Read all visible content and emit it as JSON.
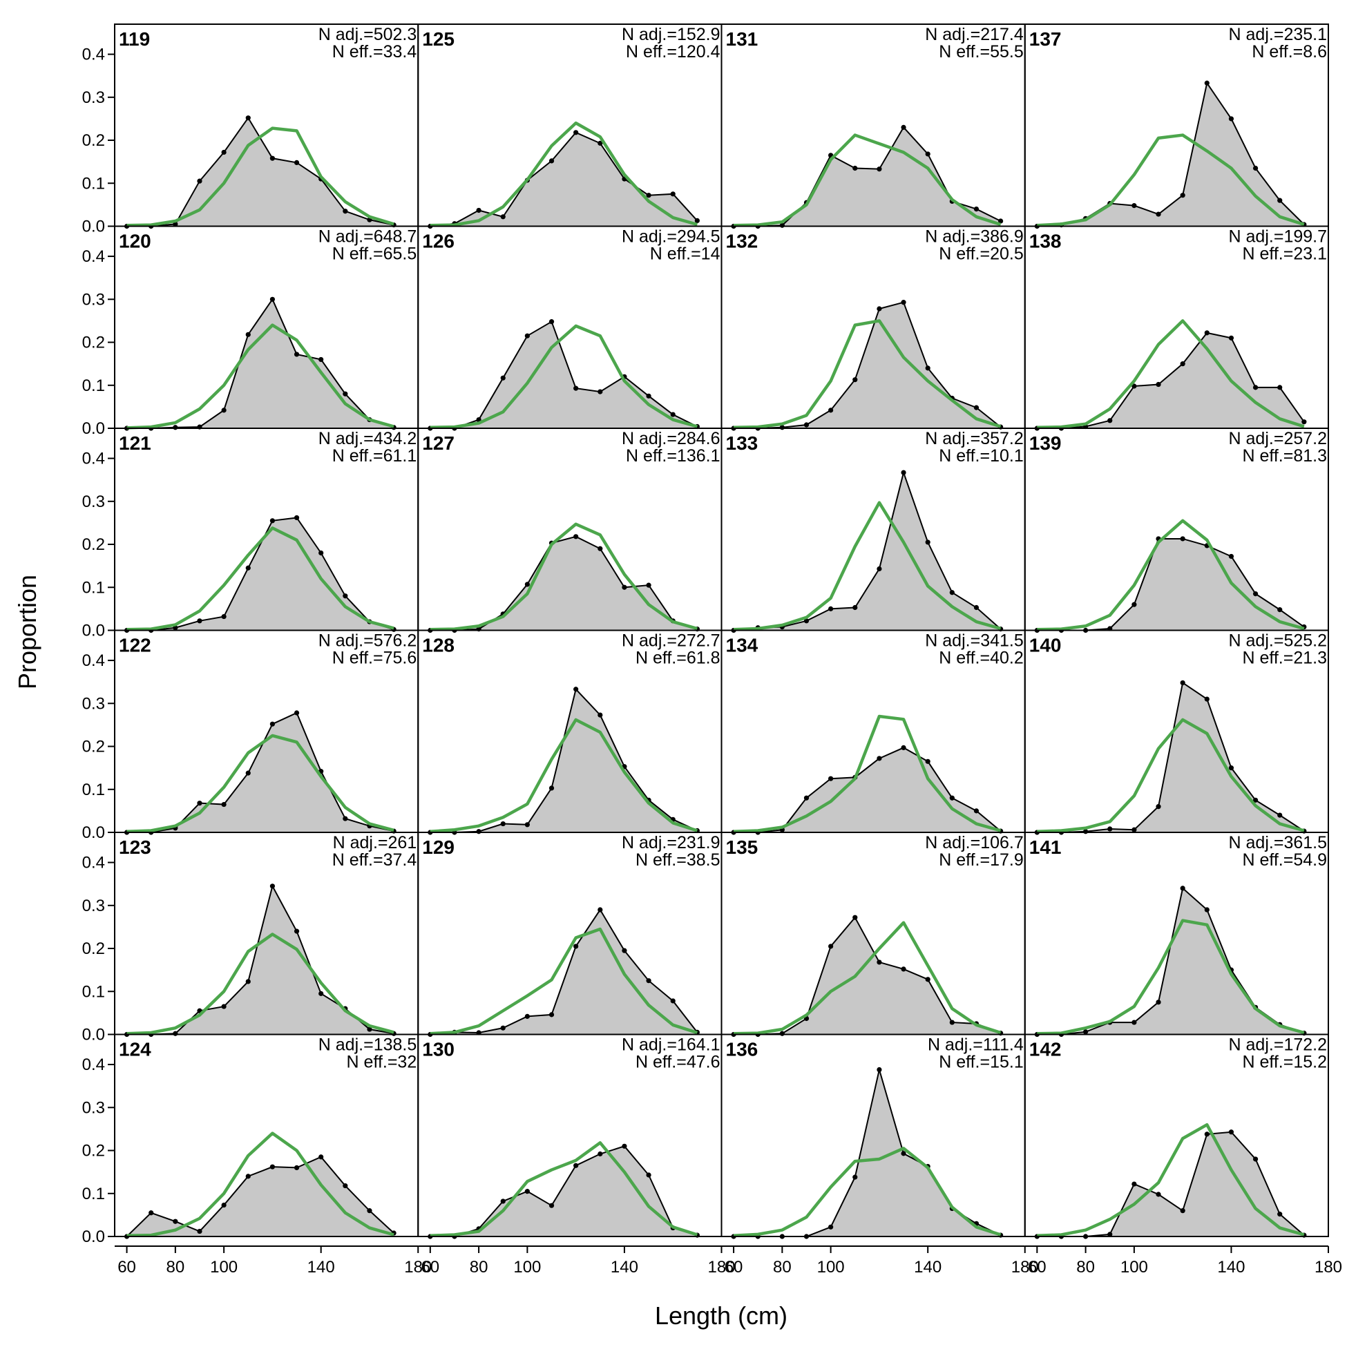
{
  "chart_data": {
    "type": "area",
    "xlabel": "Length (cm)",
    "ylabel": "Proportion",
    "xlim": [
      55,
      180
    ],
    "ylim": [
      0,
      0.47
    ],
    "x_ticks": [
      60,
      80,
      100,
      140,
      180
    ],
    "y_ticks": [
      0.0,
      0.1,
      0.2,
      0.3,
      0.4
    ],
    "x_tick_labels": [
      "60",
      "80",
      "100",
      "140",
      "180"
    ],
    "y_tick_labels": [
      "0.0",
      "0.1",
      "0.2",
      "0.3",
      "0.4"
    ],
    "x": [
      60,
      70,
      80,
      90,
      100,
      110,
      120,
      130,
      140,
      150,
      160,
      170
    ],
    "colors": {
      "observed_fill": "#c8c8c8",
      "observed_line": "#000000",
      "expected_line": "#4ca64c",
      "zero_line": "#b0b0b0"
    },
    "grid": false,
    "layout": {
      "rows": 6,
      "columns": 4,
      "order": "column-major"
    },
    "panels": [
      {
        "id": "119",
        "n_adj": "N adj.=502.3",
        "n_eff": "N eff.=33.4",
        "observed": [
          0,
          0,
          0.005,
          0.105,
          0.172,
          0.252,
          0.158,
          0.148,
          0.11,
          0.035,
          0.015,
          0.003
        ],
        "expected": [
          0.002,
          0.003,
          0.012,
          0.038,
          0.1,
          0.188,
          0.228,
          0.222,
          0.115,
          0.057,
          0.022,
          0.005
        ]
      },
      {
        "id": "120",
        "n_adj": "N adj.=648.7",
        "n_eff": "N eff.=65.5",
        "observed": [
          0,
          0,
          0.002,
          0.003,
          0.042,
          0.218,
          0.3,
          0.172,
          0.16,
          0.08,
          0.02,
          0.002
        ],
        "expected": [
          0.001,
          0.003,
          0.013,
          0.045,
          0.1,
          0.183,
          0.24,
          0.205,
          0.13,
          0.057,
          0.02,
          0.004
        ]
      },
      {
        "id": "121",
        "n_adj": "N adj.=434.2",
        "n_eff": "N eff.=61.1",
        "observed": [
          0,
          0,
          0.006,
          0.022,
          0.032,
          0.145,
          0.255,
          0.262,
          0.18,
          0.08,
          0.02,
          0.002
        ],
        "expected": [
          0.002,
          0.003,
          0.013,
          0.045,
          0.105,
          0.175,
          0.238,
          0.21,
          0.12,
          0.055,
          0.02,
          0.005
        ]
      },
      {
        "id": "122",
        "n_adj": "N adj.=576.2",
        "n_eff": "N eff.=75.6",
        "observed": [
          0,
          0,
          0.01,
          0.068,
          0.065,
          0.138,
          0.252,
          0.278,
          0.142,
          0.032,
          0.015,
          0.003
        ],
        "expected": [
          0.002,
          0.004,
          0.015,
          0.045,
          0.105,
          0.185,
          0.225,
          0.21,
          0.13,
          0.058,
          0.02,
          0.005
        ]
      },
      {
        "id": "123",
        "n_adj": "N adj.=261",
        "n_eff": "N eff.=37.4",
        "observed": [
          0,
          0,
          0.002,
          0.055,
          0.065,
          0.123,
          0.345,
          0.24,
          0.095,
          0.06,
          0.012,
          0.002
        ],
        "expected": [
          0.002,
          0.004,
          0.015,
          0.045,
          0.1,
          0.193,
          0.233,
          0.198,
          0.12,
          0.055,
          0.02,
          0.005
        ]
      },
      {
        "id": "124",
        "n_adj": "N adj.=138.5",
        "n_eff": "N eff.=32",
        "observed": [
          0,
          0.055,
          0.035,
          0.012,
          0.073,
          0.14,
          0.162,
          0.16,
          0.185,
          0.118,
          0.06,
          0.008
        ],
        "expected": [
          0.002,
          0.003,
          0.015,
          0.042,
          0.1,
          0.188,
          0.24,
          0.2,
          0.12,
          0.055,
          0.02,
          0.004
        ]
      },
      {
        "id": "125",
        "n_adj": "N adj.=152.9",
        "n_eff": "N eff.=120.4",
        "observed": [
          0,
          0.006,
          0.037,
          0.022,
          0.107,
          0.152,
          0.218,
          0.193,
          0.11,
          0.072,
          0.075,
          0.013
        ],
        "expected": [
          0.002,
          0.003,
          0.013,
          0.045,
          0.108,
          0.187,
          0.24,
          0.208,
          0.12,
          0.058,
          0.02,
          0.004
        ]
      },
      {
        "id": "126",
        "n_adj": "N adj.=294.5",
        "n_eff": "N eff.=14",
        "observed": [
          0,
          0,
          0.02,
          0.117,
          0.215,
          0.248,
          0.093,
          0.085,
          0.12,
          0.075,
          0.032,
          0.004
        ],
        "expected": [
          0.002,
          0.003,
          0.012,
          0.038,
          0.105,
          0.188,
          0.238,
          0.215,
          0.11,
          0.055,
          0.02,
          0.004
        ]
      },
      {
        "id": "127",
        "n_adj": "N adj.=284.6",
        "n_eff": "N eff.=136.1",
        "observed": [
          0,
          0,
          0.003,
          0.038,
          0.107,
          0.203,
          0.218,
          0.19,
          0.1,
          0.105,
          0.022,
          0.003
        ],
        "expected": [
          0.002,
          0.003,
          0.01,
          0.032,
          0.085,
          0.2,
          0.247,
          0.222,
          0.13,
          0.06,
          0.02,
          0.004
        ]
      },
      {
        "id": "128",
        "n_adj": "N adj.=272.7",
        "n_eff": "N eff.=61.8",
        "observed": [
          0,
          0,
          0.002,
          0.02,
          0.018,
          0.103,
          0.333,
          0.273,
          0.153,
          0.075,
          0.03,
          0.004
        ],
        "expected": [
          0.002,
          0.006,
          0.015,
          0.035,
          0.066,
          0.17,
          0.262,
          0.233,
          0.14,
          0.068,
          0.022,
          0.004
        ]
      },
      {
        "id": "129",
        "n_adj": "N adj.=231.9",
        "n_eff": "N eff.=38.5",
        "observed": [
          0,
          0.005,
          0.004,
          0.015,
          0.042,
          0.046,
          0.205,
          0.29,
          0.195,
          0.125,
          0.078,
          0.005
        ],
        "expected": [
          0.002,
          0.005,
          0.02,
          0.055,
          0.09,
          0.127,
          0.225,
          0.245,
          0.14,
          0.068,
          0.022,
          0.004
        ]
      },
      {
        "id": "130",
        "n_adj": "N adj.=164.1",
        "n_eff": "N eff.=47.6",
        "observed": [
          0,
          0,
          0.018,
          0.082,
          0.105,
          0.072,
          0.165,
          0.192,
          0.21,
          0.143,
          0.02,
          0.003
        ],
        "expected": [
          0.002,
          0.004,
          0.012,
          0.06,
          0.128,
          0.155,
          0.177,
          0.218,
          0.15,
          0.07,
          0.022,
          0.004
        ]
      },
      {
        "id": "131",
        "n_adj": "N adj.=217.4",
        "n_eff": "N eff.=55.5",
        "observed": [
          0,
          0,
          0.002,
          0.055,
          0.165,
          0.135,
          0.133,
          0.23,
          0.168,
          0.058,
          0.04,
          0.012
        ],
        "expected": [
          0.002,
          0.003,
          0.01,
          0.05,
          0.155,
          0.212,
          0.192,
          0.172,
          0.135,
          0.062,
          0.022,
          0.004
        ]
      },
      {
        "id": "132",
        "n_adj": "N adj.=386.9",
        "n_eff": "N eff.=20.5",
        "observed": [
          0,
          0,
          0.002,
          0.008,
          0.042,
          0.113,
          0.278,
          0.293,
          0.14,
          0.07,
          0.048,
          0.003
        ],
        "expected": [
          0.002,
          0.003,
          0.01,
          0.03,
          0.11,
          0.24,
          0.25,
          0.165,
          0.11,
          0.065,
          0.022,
          0.004
        ]
      },
      {
        "id": "133",
        "n_adj": "N adj.=357.2",
        "n_eff": "N eff.=10.1",
        "observed": [
          0,
          0.006,
          0.008,
          0.022,
          0.05,
          0.053,
          0.143,
          0.367,
          0.205,
          0.088,
          0.053,
          0.003
        ],
        "expected": [
          0.002,
          0.004,
          0.012,
          0.03,
          0.075,
          0.195,
          0.297,
          0.205,
          0.103,
          0.055,
          0.02,
          0.004
        ]
      },
      {
        "id": "134",
        "n_adj": "N adj.=341.5",
        "n_eff": "N eff.=40.2",
        "observed": [
          0,
          0,
          0.006,
          0.08,
          0.125,
          0.128,
          0.172,
          0.197,
          0.165,
          0.08,
          0.05,
          0.003
        ],
        "expected": [
          0.002,
          0.004,
          0.012,
          0.038,
          0.072,
          0.125,
          0.27,
          0.263,
          0.125,
          0.055,
          0.02,
          0.004
        ]
      },
      {
        "id": "135",
        "n_adj": "N adj.=106.7",
        "n_eff": "N eff.=17.9",
        "observed": [
          0,
          0,
          0.002,
          0.037,
          0.205,
          0.272,
          0.168,
          0.152,
          0.128,
          0.028,
          0.025,
          0.003
        ],
        "expected": [
          0.002,
          0.003,
          0.012,
          0.045,
          0.1,
          0.135,
          0.2,
          0.26,
          0.16,
          0.06,
          0.022,
          0.004
        ]
      },
      {
        "id": "136",
        "n_adj": "N adj.=111.4",
        "n_eff": "N eff.=15.1",
        "observed": [
          0,
          0,
          0,
          0,
          0.022,
          0.138,
          0.388,
          0.193,
          0.163,
          0.065,
          0.03,
          0.003
        ],
        "expected": [
          0.002,
          0.005,
          0.015,
          0.045,
          0.115,
          0.175,
          0.18,
          0.205,
          0.16,
          0.068,
          0.022,
          0.004
        ]
      },
      {
        "id": "137",
        "n_adj": "N adj.=235.1",
        "n_eff": "N eff.=8.6",
        "observed": [
          0,
          0.003,
          0.018,
          0.053,
          0.048,
          0.028,
          0.072,
          0.333,
          0.25,
          0.135,
          0.06,
          0.004
        ],
        "expected": [
          0.002,
          0.005,
          0.015,
          0.05,
          0.12,
          0.205,
          0.212,
          0.175,
          0.135,
          0.07,
          0.022,
          0.004
        ]
      },
      {
        "id": "138",
        "n_adj": "N adj.=199.7",
        "n_eff": "N eff.=23.1",
        "observed": [
          0,
          0,
          0.004,
          0.018,
          0.098,
          0.102,
          0.15,
          0.222,
          0.21,
          0.095,
          0.095,
          0.015
        ],
        "expected": [
          0.002,
          0.003,
          0.01,
          0.045,
          0.11,
          0.195,
          0.25,
          0.185,
          0.11,
          0.06,
          0.022,
          0.004
        ]
      },
      {
        "id": "139",
        "n_adj": "N adj.=257.2",
        "n_eff": "N eff.=81.3",
        "observed": [
          0,
          0,
          0,
          0.004,
          0.06,
          0.213,
          0.213,
          0.197,
          0.172,
          0.085,
          0.048,
          0.008
        ],
        "expected": [
          0.002,
          0.003,
          0.01,
          0.035,
          0.105,
          0.205,
          0.255,
          0.21,
          0.11,
          0.055,
          0.02,
          0.004
        ]
      },
      {
        "id": "140",
        "n_adj": "N adj.=525.2",
        "n_eff": "N eff.=21.3",
        "observed": [
          0,
          0,
          0.002,
          0.008,
          0.006,
          0.06,
          0.348,
          0.31,
          0.15,
          0.075,
          0.04,
          0.003
        ],
        "expected": [
          0.002,
          0.004,
          0.01,
          0.025,
          0.085,
          0.195,
          0.262,
          0.23,
          0.13,
          0.062,
          0.02,
          0.004
        ]
      },
      {
        "id": "141",
        "n_adj": "N adj.=361.5",
        "n_eff": "N eff.=54.9",
        "observed": [
          0,
          0,
          0.006,
          0.028,
          0.028,
          0.075,
          0.34,
          0.29,
          0.15,
          0.063,
          0.023,
          0.003
        ],
        "expected": [
          0.002,
          0.003,
          0.015,
          0.03,
          0.065,
          0.155,
          0.265,
          0.255,
          0.14,
          0.06,
          0.02,
          0.004
        ]
      },
      {
        "id": "142",
        "n_adj": "N adj.=172.2",
        "n_eff": "N eff.=15.2",
        "observed": [
          0,
          0,
          0,
          0.005,
          0.122,
          0.098,
          0.06,
          0.238,
          0.243,
          0.18,
          0.052,
          0.003
        ],
        "expected": [
          0.002,
          0.004,
          0.015,
          0.04,
          0.075,
          0.125,
          0.228,
          0.26,
          0.155,
          0.065,
          0.02,
          0.004
        ]
      }
    ]
  }
}
